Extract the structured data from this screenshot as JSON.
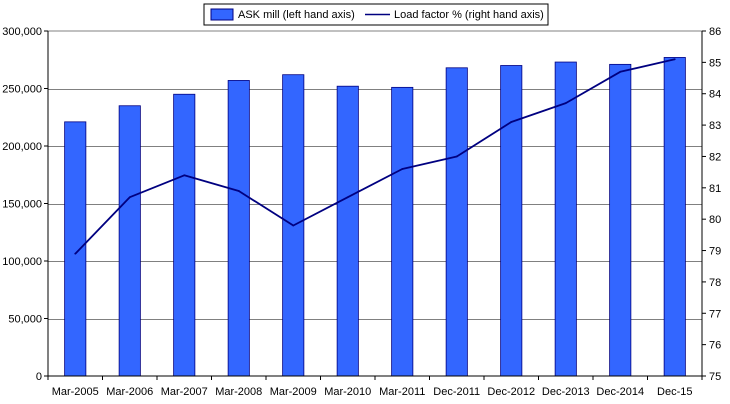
{
  "chart_data": {
    "type": "bar",
    "categories": [
      "Mar-2005",
      "Mar-2006",
      "Mar-2007",
      "Mar-2008",
      "Mar-2009",
      "Mar-2010",
      "Mar-2011",
      "Dec-2011",
      "Dec-2012",
      "Dec-2013",
      "Dec-2014",
      "Dec-15"
    ],
    "series": [
      {
        "name": "ASK mill (left hand axis)",
        "type": "bar",
        "axis": "left",
        "color": "#3366FF",
        "values": [
          221000,
          235000,
          245000,
          257000,
          262000,
          252000,
          251000,
          268000,
          270000,
          273000,
          271000,
          277000
        ]
      },
      {
        "name": "Load factor % (right hand axis)",
        "type": "line",
        "axis": "right",
        "color": "#000080",
        "values": [
          78.9,
          80.7,
          81.4,
          80.9,
          79.8,
          80.7,
          81.6,
          82.0,
          83.1,
          83.7,
          84.7,
          85.1
        ]
      }
    ],
    "y_left": {
      "ylim": [
        0,
        300000
      ],
      "ticks": [
        "0",
        "50,000",
        "100,000",
        "150,000",
        "200,000",
        "250,000",
        "300,000"
      ]
    },
    "y_right": {
      "ylim": [
        75,
        86
      ],
      "ticks": [
        "75",
        "76",
        "77",
        "78",
        "79",
        "80",
        "81",
        "82",
        "83",
        "84",
        "85",
        "86"
      ]
    },
    "grid": true,
    "legend": "top-center"
  }
}
